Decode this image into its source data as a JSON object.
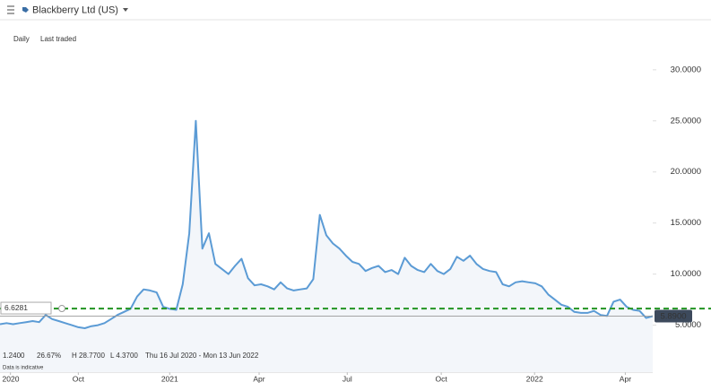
{
  "header": {
    "title": "Blackberry Ltd (US)",
    "interval": "Daily",
    "mode": "Last traded"
  },
  "stats": {
    "change": "1.2400",
    "change_pct": "26.67%",
    "high": "H 28.7700",
    "low": "L 4.3700",
    "range": "Thu 16 Jul 2020 - Mon 13 Jun 2022",
    "note": "Data is indicative"
  },
  "chart_data": {
    "type": "line",
    "values": [
      5.1,
      5.2,
      5.1,
      5.2,
      5.3,
      5.4,
      5.3,
      6.0,
      5.6,
      5.4,
      5.2,
      5.0,
      4.8,
      4.7,
      4.9,
      5.0,
      5.2,
      5.6,
      6.0,
      6.3,
      6.6,
      7.8,
      8.5,
      8.4,
      8.2,
      6.8,
      6.6,
      6.5,
      9.0,
      14.0,
      25.0,
      12.5,
      14.0,
      11.0,
      10.5,
      10.0,
      10.8,
      11.5,
      9.6,
      8.9,
      9.0,
      8.8,
      8.5,
      9.2,
      8.6,
      8.4,
      8.5,
      8.6,
      9.5,
      15.8,
      13.8,
      13.0,
      12.5,
      11.8,
      11.2,
      11.0,
      10.3,
      10.6,
      10.8,
      10.2,
      10.4,
      10.0,
      11.6,
      10.8,
      10.4,
      10.2,
      11.0,
      10.3,
      10.0,
      10.5,
      11.7,
      11.3,
      11.8,
      11.0,
      10.5,
      10.3,
      10.2,
      9.0,
      8.8,
      9.2,
      9.3,
      9.2,
      9.1,
      8.8,
      8.0,
      7.5,
      7.0,
      6.8,
      6.3,
      6.2,
      6.2,
      6.4,
      6.0,
      5.9,
      7.3,
      7.5,
      6.8,
      6.5,
      6.4,
      5.7,
      5.89
    ],
    "color": "#5b9bd5",
    "xlim": [
      0,
      100
    ],
    "xticks": [
      {
        "value": 1.6,
        "label": "2020"
      },
      {
        "value": 12,
        "label": "Oct"
      },
      {
        "value": 26,
        "label": "2021"
      },
      {
        "value": 39.7,
        "label": "Apr"
      },
      {
        "value": 53.2,
        "label": "Jul"
      },
      {
        "value": 67.6,
        "label": "Oct"
      },
      {
        "value": 81.9,
        "label": "2022"
      },
      {
        "value": 95.8,
        "label": "Apr"
      }
    ],
    "ylim": [
      0.4,
      34.9
    ],
    "yticks": [
      {
        "value": 5,
        "label": "5.0000"
      },
      {
        "value": 10,
        "label": "10.0000"
      },
      {
        "value": 15,
        "label": "15.0000"
      },
      {
        "value": 20,
        "label": "20.0000"
      },
      {
        "value": 25,
        "label": "25.0000"
      },
      {
        "value": 30,
        "label": "30.0000"
      }
    ],
    "reference": {
      "value": 6.6281,
      "label": "6.6281",
      "color": "#2e9a2e"
    },
    "last": {
      "value": 5.89,
      "label": "5.8900"
    }
  }
}
